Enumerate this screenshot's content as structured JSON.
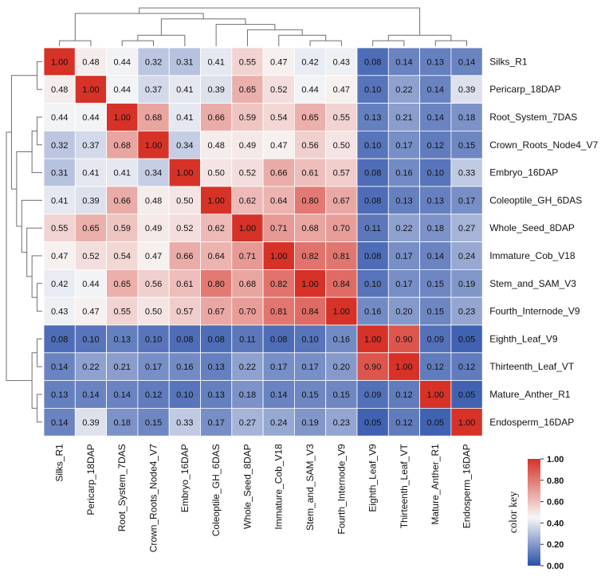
{
  "chart_data": {
    "type": "heatmap",
    "title": "",
    "xlabel": "",
    "ylabel": "",
    "rows": [
      "Silks_R1",
      "Pericarp_18DAP",
      "Root_System_7DAS",
      "Crown_Roots_Node4_V7",
      "Embryo_16DAP",
      "Coleoptile_GH_6DAS",
      "Whole_Seed_8DAP",
      "Immature_Cob_V18",
      "Stem_and_SAM_V3",
      "Fourth_Internode_V9",
      "Eighth_Leaf_V9",
      "Thirteenth_Leaf_VT",
      "Mature_Anther_R1",
      "Endosperm_16DAP"
    ],
    "columns": [
      "Silks_R1",
      "Pericarp_18DAP",
      "Root_System_7DAS",
      "Crown_Roots_Node4_V7",
      "Embryo_16DAP",
      "Coleoptile_GH_6DAS",
      "Whole_Seed_8DAP",
      "Immature_Cob_V18",
      "Stem_and_SAM_V3",
      "Fourth_Internode_V9",
      "Eighth_Leaf_V9",
      "Thirteenth_Leaf_VT",
      "Mature_Anther_R1",
      "Endosperm_16DAP"
    ],
    "values": [
      [
        1.0,
        0.48,
        0.44,
        0.32,
        0.31,
        0.41,
        0.55,
        0.47,
        0.42,
        0.43,
        0.08,
        0.14,
        0.13,
        0.14
      ],
      [
        0.48,
        1.0,
        0.44,
        0.37,
        0.41,
        0.39,
        0.65,
        0.52,
        0.44,
        0.47,
        0.1,
        0.22,
        0.14,
        0.39
      ],
      [
        0.44,
        0.44,
        1.0,
        0.68,
        0.41,
        0.66,
        0.59,
        0.54,
        0.65,
        0.55,
        0.13,
        0.21,
        0.14,
        0.18
      ],
      [
        0.32,
        0.37,
        0.68,
        1.0,
        0.34,
        0.48,
        0.49,
        0.47,
        0.56,
        0.5,
        0.1,
        0.17,
        0.12,
        0.15
      ],
      [
        0.31,
        0.41,
        0.41,
        0.34,
        1.0,
        0.5,
        0.52,
        0.66,
        0.61,
        0.57,
        0.08,
        0.16,
        0.1,
        0.33
      ],
      [
        0.41,
        0.39,
        0.66,
        0.48,
        0.5,
        1.0,
        0.62,
        0.64,
        0.8,
        0.67,
        0.08,
        0.13,
        0.13,
        0.17
      ],
      [
        0.55,
        0.65,
        0.59,
        0.49,
        0.52,
        0.62,
        1.0,
        0.71,
        0.68,
        0.7,
        0.11,
        0.22,
        0.18,
        0.27
      ],
      [
        0.47,
        0.52,
        0.54,
        0.47,
        0.66,
        0.64,
        0.71,
        1.0,
        0.82,
        0.81,
        0.08,
        0.17,
        0.14,
        0.24
      ],
      [
        0.42,
        0.44,
        0.65,
        0.56,
        0.61,
        0.8,
        0.68,
        0.82,
        1.0,
        0.84,
        0.1,
        0.17,
        0.15,
        0.19
      ],
      [
        0.43,
        0.47,
        0.55,
        0.5,
        0.57,
        0.67,
        0.7,
        0.81,
        0.84,
        1.0,
        0.16,
        0.2,
        0.15,
        0.23
      ],
      [
        0.08,
        0.1,
        0.13,
        0.1,
        0.08,
        0.08,
        0.11,
        0.08,
        0.1,
        0.16,
        1.0,
        0.9,
        0.09,
        0.05
      ],
      [
        0.14,
        0.22,
        0.21,
        0.17,
        0.16,
        0.13,
        0.22,
        0.17,
        0.17,
        0.2,
        0.9,
        1.0,
        0.12,
        0.12
      ],
      [
        0.13,
        0.14,
        0.14,
        0.12,
        0.1,
        0.13,
        0.18,
        0.14,
        0.15,
        0.15,
        0.09,
        0.12,
        1.0,
        0.05
      ],
      [
        0.14,
        0.39,
        0.18,
        0.15,
        0.33,
        0.17,
        0.27,
        0.24,
        0.19,
        0.23,
        0.05,
        0.12,
        0.05,
        1.0
      ]
    ],
    "value_range": [
      0,
      1
    ],
    "color_scale": {
      "low": "#2a4fa8",
      "mid": "#f7f7f7",
      "high": "#d63228"
    },
    "color_key": {
      "title": "color key",
      "ticks": [
        "1.00",
        "0.80",
        "0.60",
        "0.40",
        "0.20",
        "0.00"
      ],
      "placement": "bottom-right"
    },
    "dendrogram": {
      "top": true,
      "left": true
    }
  }
}
